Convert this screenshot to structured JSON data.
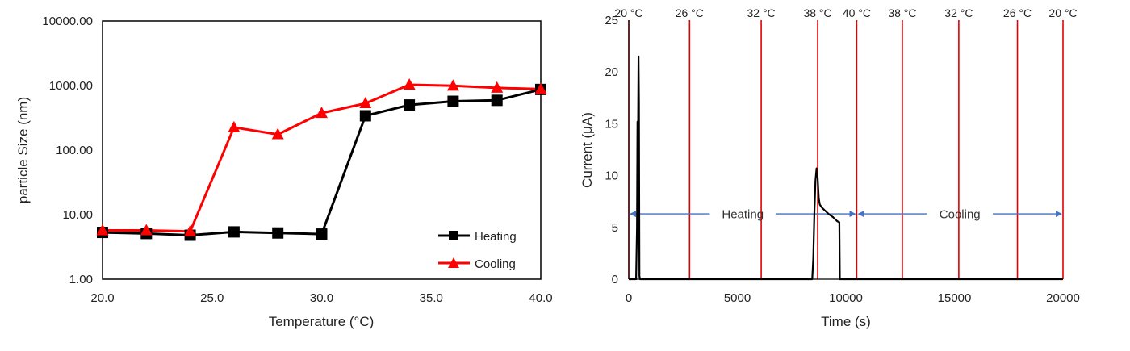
{
  "chart_data": [
    {
      "type": "line",
      "title": "",
      "xlabel": "Temperature (°C)",
      "ylabel": "particle Size (nm)",
      "yscale": "log",
      "xlim": [
        20,
        40
      ],
      "ylim": [
        1,
        10000
      ],
      "x_ticks": [
        "20.0",
        "25.0",
        "30.0",
        "35.0",
        "40.0"
      ],
      "y_ticks": [
        "1.00",
        "10.00",
        "100.00",
        "1000.00",
        "10000.00"
      ],
      "legend_position": "bottom-right",
      "series": [
        {
          "name": "Heating",
          "color": "#000000",
          "marker": "square",
          "x": [
            20,
            22,
            24,
            26,
            28,
            30,
            32,
            34,
            36,
            38,
            40
          ],
          "y": [
            5.3,
            5.1,
            4.8,
            5.4,
            5.2,
            5.0,
            340,
            500,
            570,
            590,
            870
          ]
        },
        {
          "name": "Cooling",
          "color": "#ff0000",
          "marker": "triangle",
          "x": [
            20,
            22,
            24,
            26,
            28,
            30,
            32,
            34,
            36,
            38,
            40
          ],
          "y": [
            5.7,
            5.7,
            5.5,
            225,
            175,
            375,
            530,
            1030,
            990,
            920,
            880
          ]
        }
      ]
    },
    {
      "type": "line",
      "title": "",
      "xlabel": "Time (s)",
      "ylabel": "Current (μA)",
      "xlim": [
        0,
        20000
      ],
      "ylim": [
        0,
        25
      ],
      "x_ticks": [
        "0",
        "5000",
        "10000",
        "15000",
        "20000"
      ],
      "y_ticks": [
        "0",
        "5",
        "10",
        "15",
        "20",
        "25"
      ],
      "series": [
        {
          "name": "Current",
          "color": "#000000",
          "x": [
            0,
            340,
            380,
            400,
            430,
            450,
            470,
            490,
            520,
            8450,
            8500,
            8550,
            8600,
            8650,
            8700,
            8750,
            8800,
            8900,
            9000,
            9200,
            9400,
            9500,
            9600,
            9700,
            9720,
            20000
          ],
          "y": [
            0,
            0,
            5,
            15.2,
            15.2,
            21.5,
            17,
            0.3,
            0,
            0,
            2,
            6.5,
            9.5,
            10.7,
            9.8,
            7.8,
            7.2,
            6.9,
            6.7,
            6.3,
            6.0,
            5.8,
            5.6,
            5.5,
            0,
            0
          ]
        }
      ],
      "reference_lines": [
        {
          "time": 0,
          "label": "20 °C"
        },
        {
          "time": 2800,
          "label": "26 °C"
        },
        {
          "time": 6100,
          "label": "32 °C"
        },
        {
          "time": 8700,
          "label": "38 °C"
        },
        {
          "time": 10500,
          "label": "40 °C"
        },
        {
          "time": 12600,
          "label": "38 °C"
        },
        {
          "time": 15200,
          "label": "32 °C"
        },
        {
          "time": 17900,
          "label": "26 °C"
        },
        {
          "time": 20000,
          "label": "20 °C"
        }
      ],
      "annotations": [
        {
          "label": "Heating",
          "from": 0,
          "to": 10500,
          "value": 6.3
        },
        {
          "label": "Cooling",
          "from": 10500,
          "to": 20000,
          "value": 6.3
        }
      ],
      "reference_color": "#e00000",
      "arrow_color": "#4472c4"
    }
  ]
}
